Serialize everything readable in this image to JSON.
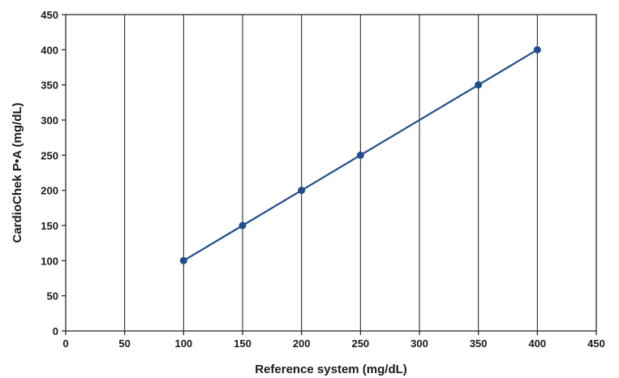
{
  "chart_data": {
    "type": "line",
    "title": "",
    "xlabel": "Reference system (mg/dL)",
    "ylabel": "CardioChek P•A (mg/dL)",
    "xlim": [
      0,
      450
    ],
    "ylim": [
      0,
      450
    ],
    "xticks": [
      0,
      50,
      100,
      150,
      200,
      250,
      300,
      350,
      400,
      450
    ],
    "yticks": [
      0,
      50,
      100,
      150,
      200,
      250,
      300,
      350,
      400,
      450
    ],
    "grid": "vertical",
    "legend": "none",
    "series": [
      {
        "x": [
          100,
          150,
          200,
          250,
          350,
          400
        ],
        "y": [
          100,
          150,
          200,
          250,
          350,
          400
        ],
        "color": "#1f4e8c"
      }
    ]
  }
}
